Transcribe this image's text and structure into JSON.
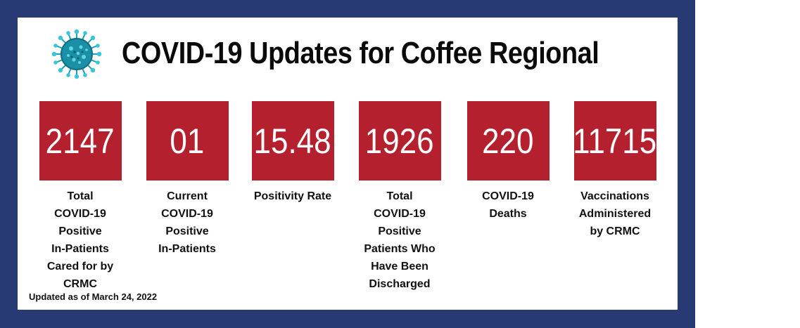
{
  "title": "COVID-19 Updates for Coffee Regional",
  "icon": "virus-icon",
  "colors": {
    "frame": "#283a73",
    "stat_box": "#b5202e",
    "virus": "#1aa0b8"
  },
  "stats": [
    {
      "value": "2147",
      "label": "Total\nCOVID-19\nPositive\nIn-Patients\nCared for by\nCRMC"
    },
    {
      "value": "01",
      "label": "Current\nCOVID-19\nPositive\nIn-Patients"
    },
    {
      "value": "15.48",
      "label": "Positivity Rate"
    },
    {
      "value": "1926",
      "label": "Total\nCOVID-19\nPositive\nPatients Who\nHave Been\nDischarged"
    },
    {
      "value": "220",
      "label": "COVID-19\nDeaths"
    },
    {
      "value": "11715",
      "label": "Vaccinations\nAdministered\nby CRMC"
    }
  ],
  "updated": "Updated as of March 24, 2022"
}
